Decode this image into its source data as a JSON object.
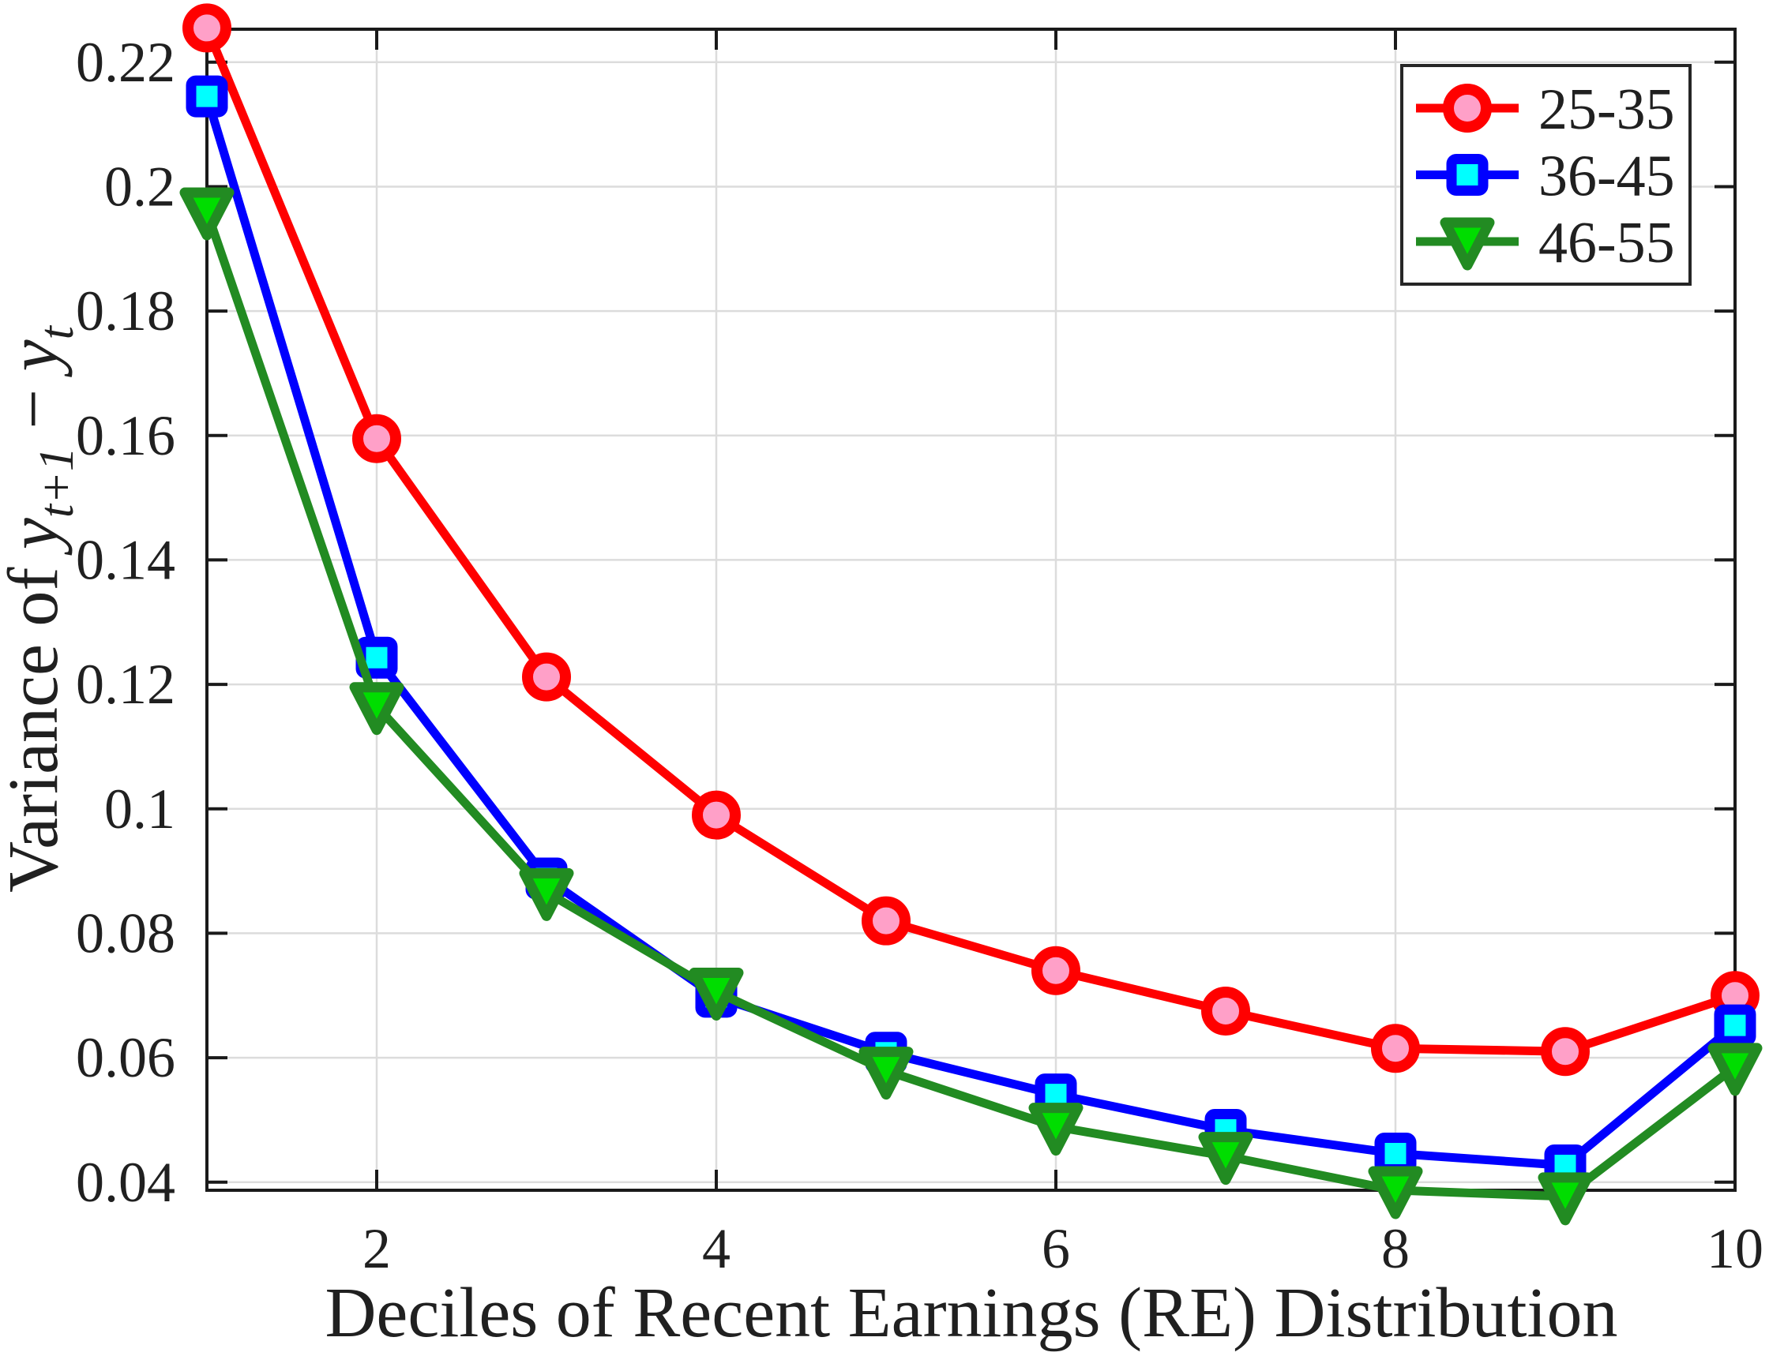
{
  "chart_data": {
    "type": "line",
    "title": "",
    "xlabel": "Deciles of Recent Earnings (RE) Distribution",
    "ylabel": "Variance of y_{t+1} − y_t",
    "ylabel_segments": [
      {
        "text": "Variance of ",
        "italic": false,
        "sub": false
      },
      {
        "text": "y",
        "italic": true,
        "sub": false
      },
      {
        "text": "t+1",
        "italic": true,
        "sub": true
      },
      {
        "text": " − ",
        "italic": false,
        "sub": false
      },
      {
        "text": "y",
        "italic": true,
        "sub": false
      },
      {
        "text": "t",
        "italic": true,
        "sub": true
      }
    ],
    "x": [
      1,
      2,
      3,
      4,
      5,
      6,
      7,
      8,
      9,
      10
    ],
    "xlim": [
      1,
      10
    ],
    "ylim": [
      0.0387,
      0.2253
    ],
    "xticks": [
      2,
      4,
      6,
      8,
      10
    ],
    "xtick_labels": [
      "2",
      "4",
      "6",
      "8",
      "10"
    ],
    "yticks": [
      0.04,
      0.06,
      0.08,
      0.1,
      0.12,
      0.14,
      0.16,
      0.18,
      0.2,
      0.22
    ],
    "ytick_labels": [
      "0.04",
      "0.06",
      "0.08",
      "0.1",
      "0.12",
      "0.14",
      "0.16",
      "0.18",
      "0.2",
      "0.22"
    ],
    "grid": true,
    "legend_position": "top-right",
    "series": [
      {
        "name": "25-35",
        "marker": "circle",
        "line_color": "#FF0000",
        "marker_face_color": "#FFA0C8",
        "values": [
          0.2255,
          0.1595,
          0.1212,
          0.099,
          0.082,
          0.074,
          0.0675,
          0.0615,
          0.061,
          0.07
        ]
      },
      {
        "name": "36-45",
        "marker": "square",
        "line_color": "#0000FF",
        "marker_face_color": "#00FFFF",
        "values": [
          0.2145,
          0.1243,
          0.0888,
          0.0698,
          0.0608,
          0.0541,
          0.0484,
          0.0446,
          0.0427,
          0.0652
        ]
      },
      {
        "name": "46-55",
        "marker": "triangle-down",
        "line_color": "#228B22",
        "marker_face_color": "#00DD00",
        "values": [
          0.196,
          0.1165,
          0.0866,
          0.0706,
          0.0579,
          0.0489,
          0.0442,
          0.0387,
          0.0377,
          0.0585
        ]
      }
    ],
    "colors": {
      "grid": "#DCDCDC",
      "axis": "#1A1A1A",
      "text": "#202020",
      "background": "#FFFFFF",
      "legend_border": "#262626"
    }
  }
}
